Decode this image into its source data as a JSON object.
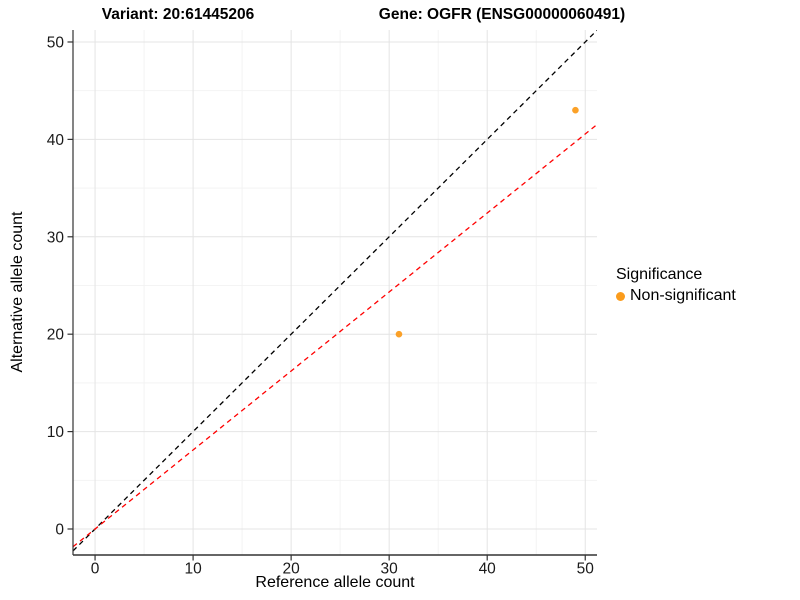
{
  "chart_data": {
    "type": "scatter",
    "titles": {
      "variant": "Variant: 20:61445206",
      "gene": "Gene: OGFR (ENSG00000060491)"
    },
    "xlabel": "Reference allele count",
    "ylabel": "Alternative allele count",
    "xlim": [
      -2.25,
      51.2
    ],
    "ylim": [
      -2.67,
      51.23
    ],
    "x_ticks": [
      0,
      10,
      20,
      30,
      40,
      50
    ],
    "y_ticks": [
      0,
      10,
      20,
      30,
      40,
      50
    ],
    "x_minor_ticks": [
      5,
      15,
      25,
      35,
      45
    ],
    "y_minor_ticks": [
      5,
      15,
      25,
      35,
      45
    ],
    "grid": "major+minor on white panel",
    "legend_position": "right",
    "series": [
      {
        "name": "Non-significant",
        "color": "#FB9C1C",
        "points": [
          {
            "x": 31,
            "y": 20
          },
          {
            "x": 49,
            "y": 43
          }
        ]
      }
    ],
    "reference_lines": [
      {
        "name": "identity-line",
        "slope": 1,
        "intercept": 0,
        "color": "#000000",
        "dash": "dashed"
      },
      {
        "name": "expected-ratio-line",
        "slope": 0.811,
        "intercept": 0,
        "color": "#FF0000",
        "dash": "dashed"
      }
    ],
    "legend": {
      "title": "Significance",
      "items": [
        {
          "label": "Non-significant",
          "color": "#FB9C1C"
        }
      ]
    },
    "style": {
      "major_grid_color": "#E4E4E4",
      "minor_grid_color": "#F2F2F2",
      "axis_line_color": "#333333",
      "tick_label_color": "#1A1A1A",
      "point_radius": 3.3
    }
  }
}
